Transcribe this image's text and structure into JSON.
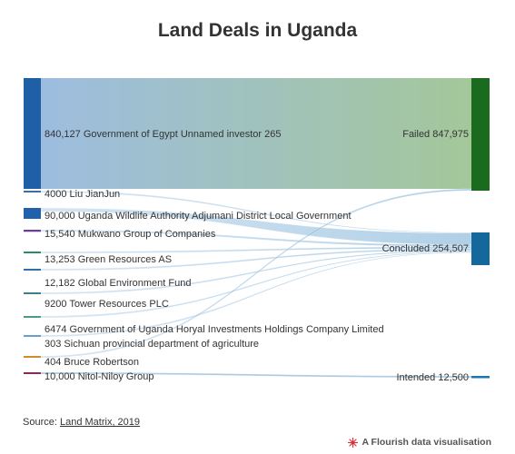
{
  "title": "Land Deals in Uganda",
  "source": {
    "prefix": "Source: ",
    "link_text": "Land Matrix, 2019"
  },
  "credit": {
    "text": "A Flourish data visualisation",
    "icon": "flourish-logo-icon",
    "icon_color": "#d8303c"
  },
  "colors": {
    "failed": "#1b6b1f",
    "concluded": "#15689c",
    "intended": "#1d75b3",
    "source_main": "#1e5fa6"
  },
  "chart_data": {
    "type": "sankey",
    "sources": [
      {
        "label": "840,127 Government of Egypt Unnamed investor 265",
        "value": 840127,
        "color": "#1e5fa6",
        "targets": {
          "Failed": 840127
        }
      },
      {
        "label": "4000 Liu JianJun",
        "value": 4000,
        "color": "#3a6ea5",
        "targets": {
          "Concluded": 4000
        }
      },
      {
        "label": "90,000 Uganda Wildlife Authority Adjumani District Local Government",
        "value": 90000,
        "color": "#1f62ab",
        "targets": {
          "Concluded": 90000
        }
      },
      {
        "label": "15,540 Mukwano Group of Companies",
        "value": 15540,
        "color": "#6a3f9a",
        "targets": {
          "Concluded": 15540
        }
      },
      {
        "label": "13,253 Green Resources AS",
        "value": 13253,
        "color": "#2a8a6a",
        "targets": {
          "Concluded": 13253
        }
      },
      {
        "label": "12,182 Global Environment Fund",
        "value": 12182,
        "color": "#2f6fb0",
        "targets": {
          "Concluded": 12182
        }
      },
      {
        "label": "9200 Tower Resources PLC",
        "value": 9200,
        "color": "#3d7d8c",
        "targets": {
          "Concluded": 9200
        }
      },
      {
        "label": "6474 Government of Uganda Horyal Investments Holdings Company Limited",
        "value": 6474,
        "color": "#4a9a8a",
        "targets": {
          "Concluded": 6474
        }
      },
      {
        "label": "303 Sichuan provincial department of agriculture",
        "value": 303,
        "color": "#6aa0c8",
        "targets": {
          "Concluded": 303
        }
      },
      {
        "label": "404 Bruce Robertson",
        "value": 404,
        "color": "#d28a2a",
        "targets": {
          "Failed": 404
        }
      },
      {
        "label": "10,000 Nitol-Niloy Group",
        "value": 10000,
        "color": "#8a2a5a",
        "targets": {
          "Intended": 10000
        }
      }
    ],
    "targets": [
      {
        "name": "Failed",
        "label": "Failed 847,975",
        "value": 847975
      },
      {
        "name": "Concluded",
        "label": "Concluded 254,507",
        "value": 254507
      },
      {
        "name": "Intended",
        "label": "Intended 12,500",
        "value": 12500
      }
    ]
  }
}
